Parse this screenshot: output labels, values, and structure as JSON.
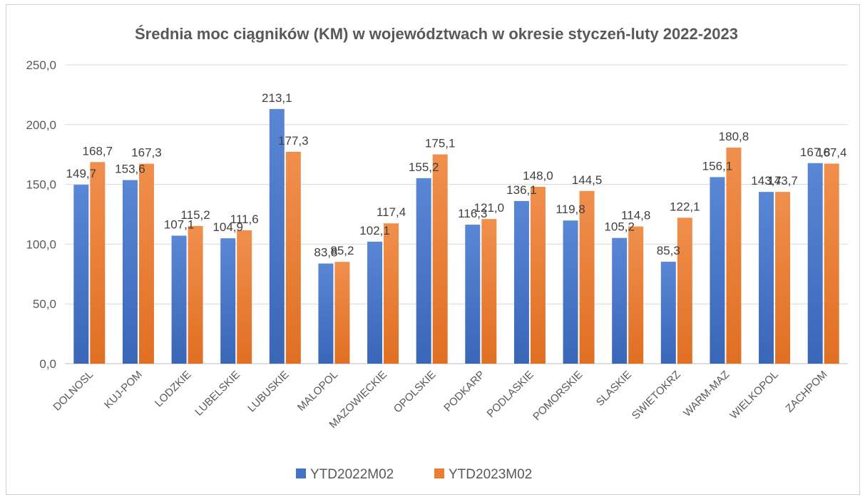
{
  "chart_data": {
    "type": "bar",
    "title": "Średnia moc ciągników (KM) w województwach w okresie styczeń-luty 2022-2023",
    "xlabel": "",
    "ylabel": "",
    "ylim": [
      0,
      250
    ],
    "yticks": [
      "0,0",
      "50,0",
      "100,0",
      "150,0",
      "200,0",
      "250,0"
    ],
    "grid": true,
    "legend_position": "bottom",
    "categories": [
      "DOLNOSL",
      "KUJ-POM",
      "LODZKIE",
      "LUBELSKIE",
      "LUBUSKIE",
      "MALOPOL",
      "MAZOWIECKIE",
      "OPOLSKIE",
      "PODKARP",
      "PODLASKIE",
      "POMORSKIE",
      "SLASKIE",
      "SWIETOKRZ",
      "WARM-MAZ",
      "WIELKOPOL",
      "ZACHPOM"
    ],
    "series": [
      {
        "name": "YTD2022M02",
        "color": "#4472C4",
        "values": [
          149.7,
          153.6,
          107.1,
          104.9,
          213.1,
          83.8,
          102.1,
          155.2,
          116.3,
          136.1,
          119.8,
          105.2,
          85.3,
          156.1,
          143.7,
          167.8
        ],
        "labels": [
          "149,7",
          "153,6",
          "107,1",
          "104,9",
          "213,1",
          "83,8",
          "102,1",
          "155,2",
          "116,3",
          "136,1",
          "119,8",
          "105,2",
          "85,3",
          "156,1",
          "143,7",
          "167,8"
        ]
      },
      {
        "name": "YTD2023M02",
        "color": "#ED7D31",
        "values": [
          168.7,
          167.3,
          115.2,
          111.6,
          177.3,
          85.2,
          117.4,
          175.1,
          121.0,
          148.0,
          144.5,
          114.8,
          122.1,
          180.8,
          143.7,
          167.4
        ],
        "labels": [
          "168,7",
          "167,3",
          "115,2",
          "111,6",
          "177,3",
          "85,2",
          "117,4",
          "175,1",
          "121,0",
          "148,0",
          "144,5",
          "114,8",
          "122,1",
          "180,8",
          "143,7",
          "167,4"
        ]
      }
    ]
  }
}
